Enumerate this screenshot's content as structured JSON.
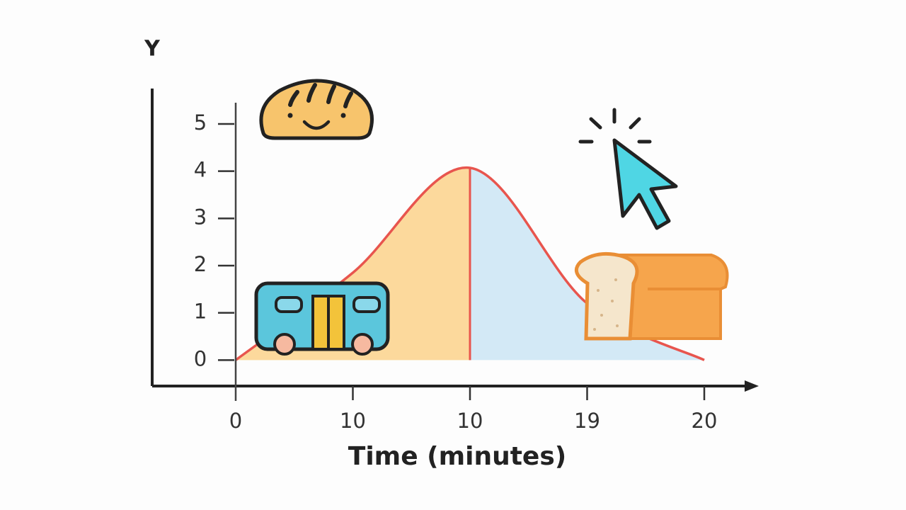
{
  "chart_data": {
    "type": "line",
    "y_label": "Y",
    "x_label": "Time (minutes)",
    "categories": [
      "0",
      "10",
      "10",
      "19",
      "20"
    ],
    "series": [
      {
        "color": "#e8554e",
        "values": [
          0,
          1.85,
          4.07,
          1.2,
          0
        ]
      }
    ],
    "fill_colors": [
      "#fcd99c",
      "#d3e9f6"
    ],
    "divider_index": 2,
    "ylim": [
      -0.55,
      5.75
    ],
    "yticks": [
      0,
      1,
      2,
      3,
      4,
      5
    ]
  }
}
